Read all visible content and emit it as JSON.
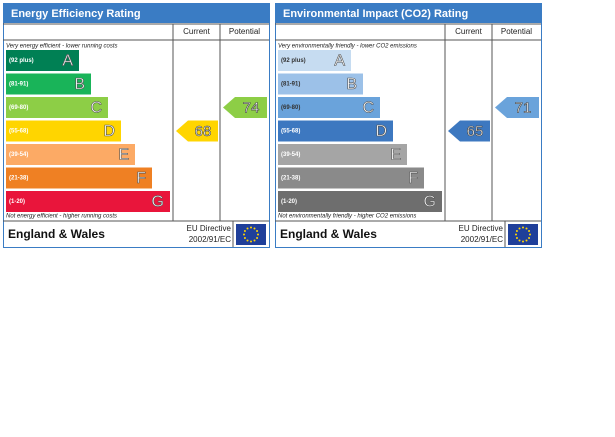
{
  "panels": [
    {
      "title": "Energy Efficiency Rating",
      "headers": [
        "Current",
        "Potential"
      ],
      "top_note": "Very energy efficient - lower running costs",
      "bottom_note": "Not energy efficient - higher running costs",
      "bands": [
        {
          "range": "(92 plus)",
          "letter": "A"
        },
        {
          "range": "(81-91)",
          "letter": "B"
        },
        {
          "range": "(69-80)",
          "letter": "C"
        },
        {
          "range": "(55-68)",
          "letter": "D"
        },
        {
          "range": "(39-54)",
          "letter": "E"
        },
        {
          "range": "(21-38)",
          "letter": "F"
        },
        {
          "range": "(1-20)",
          "letter": "G"
        }
      ],
      "current": {
        "value": 68,
        "band": "D"
      },
      "potential": {
        "value": 74,
        "band": "C"
      },
      "footer": {
        "region": "England & Wales",
        "directive": [
          "EU Directive",
          "2002/91/EC"
        ]
      }
    },
    {
      "title": "Environmental Impact (CO2) Rating",
      "headers": [
        "Current",
        "Potential"
      ],
      "top_note": "Very environmentally friendly - lower CO2 emissions",
      "bottom_note": "Not environmentally friendly - higher CO2 emissions",
      "bands": [
        {
          "range": "(92 plus)",
          "letter": "A"
        },
        {
          "range": "(81-91)",
          "letter": "B"
        },
        {
          "range": "(69-80)",
          "letter": "C"
        },
        {
          "range": "(55-68)",
          "letter": "D"
        },
        {
          "range": "(39-54)",
          "letter": "E"
        },
        {
          "range": "(21-38)",
          "letter": "F"
        },
        {
          "range": "(1-20)",
          "letter": "G"
        }
      ],
      "current": {
        "value": 65,
        "band": "D"
      },
      "potential": {
        "value": 71,
        "band": "C"
      },
      "footer": {
        "region": "England & Wales",
        "directive": [
          "EU Directive",
          "2002/91/EC"
        ]
      }
    }
  ]
}
